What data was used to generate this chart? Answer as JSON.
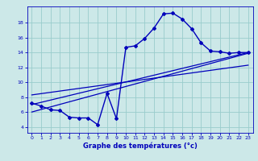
{
  "xlabel": "Graphe des températures (°c)",
  "bg_color": "#cce8e8",
  "line_color": "#0000bb",
  "grid_color": "#99cccc",
  "xlim": [
    -0.5,
    23.5
  ],
  "ylim": [
    3.2,
    20.2
  ],
  "yticks": [
    4,
    6,
    8,
    10,
    12,
    14,
    16,
    18
  ],
  "xticks": [
    0,
    1,
    2,
    3,
    4,
    5,
    6,
    7,
    8,
    9,
    10,
    11,
    12,
    13,
    14,
    15,
    16,
    17,
    18,
    19,
    20,
    21,
    22,
    23
  ],
  "curve1_x": [
    0,
    1,
    2,
    3,
    4,
    5,
    6,
    7,
    8,
    9,
    10,
    11,
    12,
    13,
    14,
    15,
    16,
    17,
    18,
    19,
    20,
    21,
    22,
    23
  ],
  "curve1_y": [
    7.2,
    6.8,
    6.3,
    6.2,
    5.3,
    5.2,
    5.2,
    4.3,
    8.5,
    5.1,
    14.7,
    14.9,
    15.9,
    17.3,
    19.2,
    19.3,
    18.5,
    17.2,
    15.3,
    14.2,
    14.1,
    13.9,
    14.0,
    14.0
  ],
  "trend1_x": [
    0,
    23
  ],
  "trend1_y": [
    7.0,
    14.0
  ],
  "trend2_x": [
    0,
    23
  ],
  "trend2_y": [
    6.0,
    13.9
  ],
  "trend3_x": [
    0,
    23
  ],
  "trend3_y": [
    8.3,
    12.3
  ]
}
